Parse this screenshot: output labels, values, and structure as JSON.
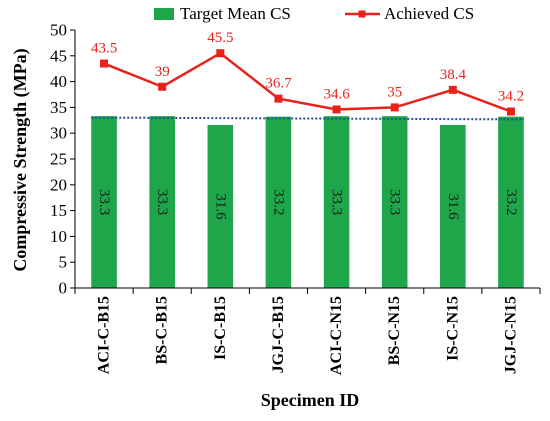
{
  "chart_data": {
    "type": "bar",
    "title": "",
    "xlabel": "Specimen ID",
    "ylabel": "Compressive Strength (MPa)",
    "ylim": [
      0,
      50
    ],
    "yticks": [
      0,
      5,
      10,
      15,
      20,
      25,
      30,
      35,
      40,
      45,
      50
    ],
    "categories": [
      "ACI-C-B15",
      "BS-C-B15",
      "IS-C-B15",
      "JGJ-C-B15",
      "ACI-C-N15",
      "BS-C-N15",
      "IS-C-N15",
      "JGJ-C-N15"
    ],
    "series": [
      {
        "name": "Target Mean CS",
        "type": "bar",
        "color": "#1fa64a",
        "values": [
          33.3,
          33.3,
          31.6,
          33.2,
          33.3,
          33.3,
          31.6,
          33.2
        ],
        "labels": [
          "33.3",
          "33.3",
          "31.6",
          "33.2",
          "33.3",
          "33.3",
          "31.6",
          "33.2"
        ]
      },
      {
        "name": "Achieved CS",
        "type": "line",
        "color": "#e8221b",
        "marker": "square",
        "values": [
          43.5,
          39,
          45.5,
          36.7,
          34.6,
          35,
          38.4,
          34.2
        ],
        "labels": [
          "43.5",
          "39",
          "45.5",
          "36.7",
          "34.6",
          "35",
          "38.4",
          "34.2"
        ]
      }
    ],
    "trendline": {
      "series": "Target Mean CS",
      "style": "dotted",
      "color": "#1f4e9a"
    },
    "legend": "top",
    "grid": false
  }
}
